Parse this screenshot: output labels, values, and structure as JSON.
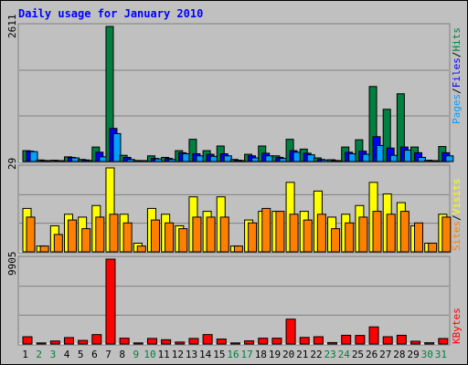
{
  "chart_data": {
    "type": "bar",
    "title": "Daily usage for January 2010",
    "days": [
      "1",
      "2",
      "3",
      "4",
      "5",
      "6",
      "7",
      "8",
      "9",
      "10",
      "11",
      "12",
      "13",
      "14",
      "15",
      "16",
      "17",
      "18",
      "19",
      "20",
      "21",
      "22",
      "23",
      "24",
      "25",
      "26",
      "27",
      "28",
      "29",
      "30",
      "31"
    ],
    "weekend_days": [
      "2",
      "3",
      "9",
      "10",
      "16",
      "17",
      "23",
      "24",
      "30",
      "31"
    ],
    "panels": [
      {
        "id": "hits",
        "scale_label": "2611",
        "ylim": [
          0,
          2611
        ],
        "series": [
          {
            "name": "Hits",
            "color": "#008040",
            "values": [
              210,
              30,
              25,
              90,
              40,
              280,
              2611,
              120,
              20,
              110,
              80,
              210,
              430,
              210,
              300,
              40,
              140,
              300,
              110,
              430,
              240,
              70,
              35,
              280,
              420,
              1450,
              1010,
              1310,
              280,
              25,
              290
            ]
          },
          {
            "name": "Files",
            "color": "#0000ff",
            "values": [
              200,
              20,
              15,
              80,
              30,
              180,
              640,
              80,
              10,
              60,
              60,
              170,
              150,
              140,
              150,
              25,
              110,
              160,
              80,
              210,
              160,
              40,
              20,
              180,
              200,
              480,
              260,
              280,
              170,
              15,
              170
            ]
          },
          {
            "name": "Pages",
            "color": "#00a0ff",
            "values": [
              190,
              15,
              10,
              70,
              20,
              90,
              540,
              40,
              5,
              50,
              40,
              150,
              110,
              100,
              110,
              15,
              70,
              110,
              60,
              180,
              130,
              30,
              15,
              150,
              140,
              310,
              120,
              220,
              80,
              10,
              110
            ]
          }
        ]
      },
      {
        "id": "visits",
        "scale_label": "29",
        "ylim": [
          0,
          29
        ],
        "series": [
          {
            "name": "Visits",
            "color": "#ffff00",
            "values": [
              15,
              2,
              9,
              13,
              12,
              16,
              29,
              13,
              3,
              15,
              13,
              9,
              19,
              14,
              19,
              2,
              11,
              14,
              14,
              24,
              14,
              21,
              12,
              13,
              16,
              24,
              20,
              17,
              9,
              3,
              13
            ]
          },
          {
            "name": "Sites",
            "color": "#ff8000",
            "values": [
              12,
              2,
              6,
              11,
              8,
              12,
              13,
              10,
              2,
              11,
              10,
              8,
              12,
              12,
              12,
              2,
              10,
              15,
              14,
              13,
              11,
              13,
              8,
              10,
              12,
              14,
              13,
              14,
              10,
              3,
              12
            ]
          }
        ]
      },
      {
        "id": "kbytes",
        "scale_label": "9905",
        "ylim": [
          0,
          9905
        ],
        "series": [
          {
            "name": "KBytes",
            "color": "#ff0000",
            "values": [
              850,
              130,
              350,
              750,
              420,
              1100,
              9905,
              680,
              130,
              650,
              500,
              230,
              650,
              1100,
              580,
              130,
              370,
              680,
              680,
              2900,
              770,
              850,
              170,
              1020,
              1000,
              2000,
              850,
              1020,
              320,
              150,
              640
            ]
          }
        ]
      }
    ],
    "legend_hits": {
      "pages": "Pages",
      "files": "Files",
      "hits": "Hits",
      "sep": "/",
      "pages_color": "#00a0ff",
      "files_color": "#0000ff",
      "hits_color": "#008040"
    },
    "legend_visits": {
      "sites": "Sites",
      "visits": "Visits",
      "sep": "/",
      "sites_color": "#ff8000",
      "visits_color": "#ffff00"
    },
    "legend_kbytes": {
      "kbytes": "KBytes",
      "kbytes_color": "#ff0000"
    },
    "colors": {
      "title": "#0000ff",
      "weekday_label": "#000000",
      "weekend_label": "#008040",
      "background": "#c0c0c0"
    }
  }
}
